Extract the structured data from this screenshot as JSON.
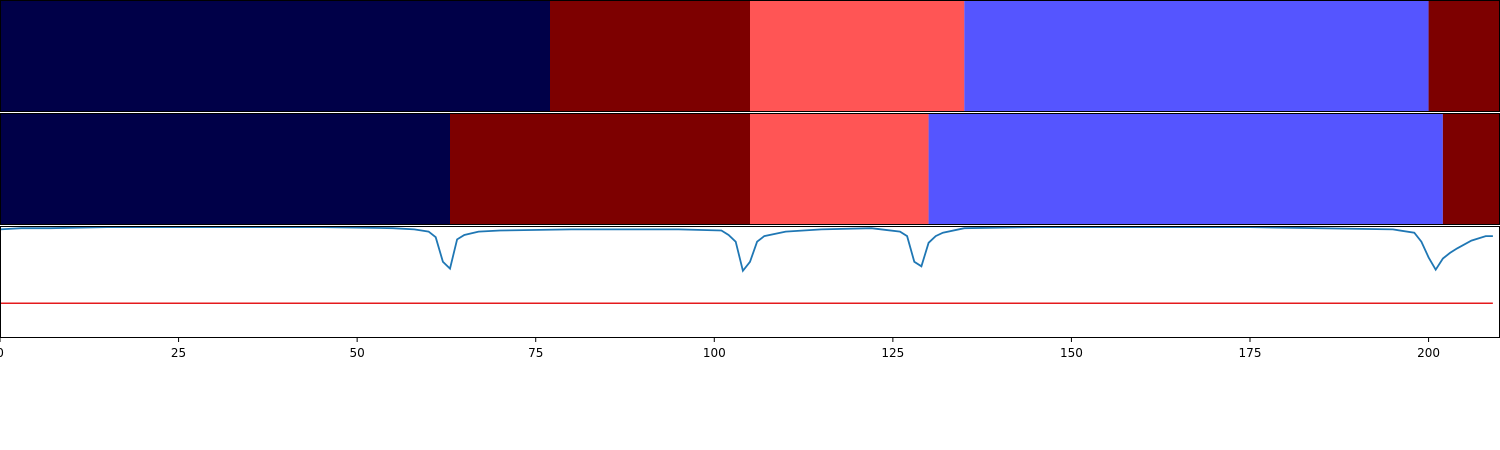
{
  "chart_data": {
    "type": "segmentation-comparison",
    "x_range": [
      0,
      210
    ],
    "x_ticks": [
      0,
      25,
      50,
      75,
      100,
      125,
      150,
      175,
      200
    ],
    "x_tick_labels": [
      "0",
      "25",
      "50",
      "75",
      "100",
      "125",
      "150",
      "175",
      "200"
    ],
    "colors": {
      "navy": "#000048",
      "darkred": "#7d0000",
      "salmon": "#ff5555",
      "periwinkle": "#5555ff",
      "line": "#1f77b4",
      "threshold": "#e41a1c"
    },
    "bars": [
      {
        "segments": [
          {
            "start": 0,
            "end": 77,
            "color": "#000048"
          },
          {
            "start": 77,
            "end": 105,
            "color": "#7d0000"
          },
          {
            "start": 105,
            "end": 135,
            "color": "#ff5555"
          },
          {
            "start": 135,
            "end": 200,
            "color": "#5555ff"
          },
          {
            "start": 200,
            "end": 210,
            "color": "#7d0000"
          }
        ]
      },
      {
        "segments": [
          {
            "start": 0,
            "end": 63,
            "color": "#000048"
          },
          {
            "start": 63,
            "end": 105,
            "color": "#7d0000"
          },
          {
            "start": 105,
            "end": 130,
            "color": "#ff5555"
          },
          {
            "start": 130,
            "end": 202,
            "color": "#5555ff"
          },
          {
            "start": 202,
            "end": 210,
            "color": "#7d0000"
          }
        ]
      }
    ],
    "line_panel": {
      "ylim": [
        0,
        1
      ],
      "threshold": 0.31,
      "x": [
        0,
        3,
        7,
        15,
        30,
        45,
        55,
        58,
        60,
        61,
        62,
        63,
        64,
        65,
        67,
        70,
        80,
        95,
        101,
        102,
        103,
        104,
        105,
        106,
        107,
        110,
        115,
        122,
        126,
        127,
        128,
        129,
        130,
        131,
        132,
        135,
        145,
        175,
        195,
        198,
        199,
        200,
        201,
        202,
        203,
        204,
        206,
        208,
        209
      ],
      "y": [
        0.97,
        0.98,
        0.98,
        0.99,
        0.99,
        0.99,
        0.98,
        0.97,
        0.95,
        0.9,
        0.68,
        0.62,
        0.88,
        0.92,
        0.95,
        0.96,
        0.97,
        0.97,
        0.96,
        0.92,
        0.86,
        0.6,
        0.68,
        0.86,
        0.91,
        0.95,
        0.97,
        0.98,
        0.95,
        0.91,
        0.68,
        0.64,
        0.85,
        0.91,
        0.94,
        0.98,
        0.99,
        0.99,
        0.97,
        0.94,
        0.86,
        0.72,
        0.61,
        0.71,
        0.76,
        0.8,
        0.87,
        0.91,
        0.91
      ]
    }
  }
}
